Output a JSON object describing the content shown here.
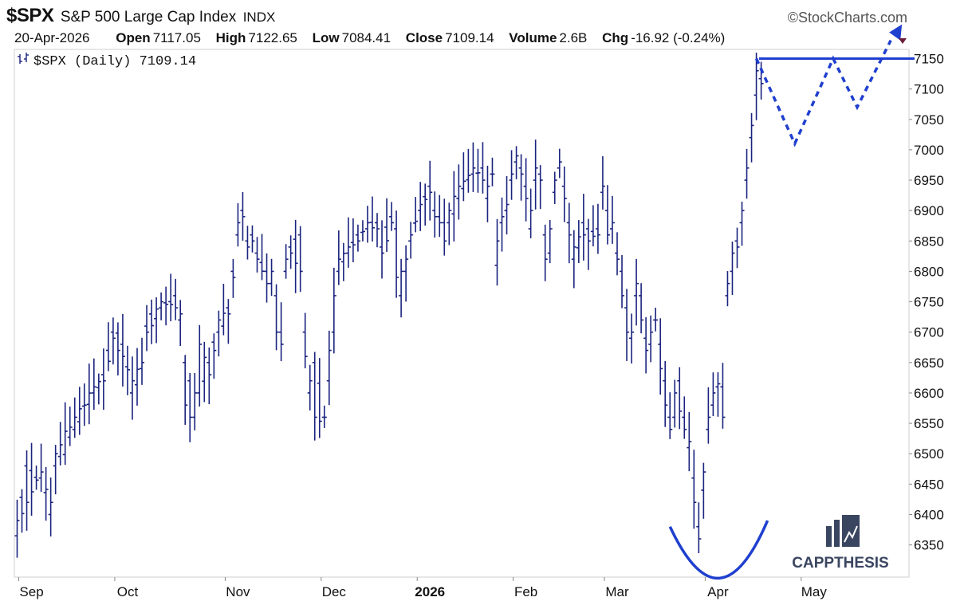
{
  "header": {
    "ticker": "$SPX",
    "name": "S&P 500 Large Cap Index",
    "exchange": "INDX",
    "brand": "©StockCharts.com",
    "date": "20-Apr-2026",
    "open_label": "Open",
    "open": "7117.05",
    "high_label": "High",
    "high": "7122.65",
    "low_label": "Low",
    "low": "7084.41",
    "close_label": "Close",
    "close": "7109.14",
    "volume_label": "Volume",
    "volume": "2.6B",
    "chg_label": "Chg",
    "chg": "-16.92 (-0.24%)"
  },
  "legend": {
    "label": "$SPX (Daily) 7109.14"
  },
  "logo": {
    "text": "CAPPTHESIS"
  },
  "colors": {
    "bars": "#1a237e",
    "annotation": "#1f3fcf",
    "chg_marker": "#6d1b3b",
    "logo": "#3a4560"
  },
  "chart_data": {
    "type": "ohlc",
    "ylim": [
      6290,
      7180
    ],
    "y_ticks": [
      6350,
      6400,
      6450,
      6500,
      6550,
      6600,
      6650,
      6700,
      6750,
      6800,
      6850,
      6900,
      6950,
      7000,
      7050,
      7100,
      7150
    ],
    "x_tick_labels": [
      {
        "label": "Sep",
        "index": 3,
        "bold": false
      },
      {
        "label": "Oct",
        "index": 23,
        "bold": false
      },
      {
        "label": "Nov",
        "index": 46,
        "bold": false
      },
      {
        "label": "Dec",
        "index": 66,
        "bold": false
      },
      {
        "label": "2026",
        "index": 86,
        "bold": true
      },
      {
        "label": "Feb",
        "index": 106,
        "bold": false
      },
      {
        "label": "Mar",
        "index": 125,
        "bold": false
      },
      {
        "label": "Apr",
        "index": 146,
        "bold": false
      },
      {
        "label": "May",
        "index": 166,
        "bold": false
      }
    ],
    "num_slots": 188,
    "anchors": [
      [
        0,
        6365,
        6390
      ],
      [
        2,
        6480,
        6420
      ],
      [
        5,
        6460,
        6470
      ],
      [
        7,
        6400,
        6420
      ],
      [
        8,
        6480,
        6500
      ],
      [
        12,
        6540,
        6560
      ],
      [
        16,
        6600,
        6610
      ],
      [
        18,
        6630,
        6620
      ],
      [
        20,
        6700,
        6690
      ],
      [
        22,
        6680,
        6660
      ],
      [
        24,
        6600,
        6620
      ],
      [
        26,
        6640,
        6650
      ],
      [
        27,
        6710,
        6700
      ],
      [
        30,
        6740,
        6750
      ],
      [
        33,
        6760,
        6740
      ],
      [
        34,
        6720,
        6730
      ],
      [
        35,
        6650,
        6580
      ],
      [
        36,
        6620,
        6560
      ],
      [
        37,
        6560,
        6600
      ],
      [
        38,
        6600,
        6680
      ],
      [
        40,
        6650,
        6630
      ],
      [
        42,
        6700,
        6720
      ],
      [
        44,
        6740,
        6730
      ],
      [
        45,
        6800,
        6790
      ],
      [
        46,
        6860,
        6880
      ],
      [
        47,
        6900,
        6890
      ],
      [
        48,
        6850,
        6840
      ],
      [
        49,
        6860,
        6850
      ],
      [
        50,
        6830,
        6820
      ],
      [
        52,
        6800,
        6780
      ],
      [
        53,
        6780,
        6800
      ],
      [
        54,
        6760,
        6700
      ],
      [
        55,
        6700,
        6680
      ],
      [
        56,
        6800,
        6820
      ],
      [
        57,
        6840,
        6830
      ],
      [
        59,
        6860,
        6800
      ],
      [
        60,
        6700,
        6660
      ],
      [
        61,
        6600,
        6620
      ],
      [
        62,
        6650,
        6560
      ],
      [
        64,
        6560,
        6560
      ],
      [
        65,
        6620,
        6670
      ],
      [
        66,
        6700,
        6760
      ],
      [
        67,
        6800,
        6820
      ],
      [
        69,
        6830,
        6840
      ],
      [
        71,
        6860,
        6850
      ],
      [
        73,
        6870,
        6880
      ],
      [
        75,
        6880,
        6870
      ],
      [
        76,
        6840,
        6830
      ],
      [
        78,
        6890,
        6880
      ],
      [
        79,
        6870,
        6790
      ],
      [
        80,
        6760,
        6800
      ],
      [
        81,
        6800,
        6820
      ],
      [
        82,
        6850,
        6860
      ],
      [
        84,
        6900,
        6910
      ],
      [
        86,
        6940,
        6930
      ],
      [
        87,
        6900,
        6890
      ],
      [
        88,
        6890,
        6880
      ],
      [
        89,
        6880,
        6850
      ],
      [
        90,
        6880,
        6900
      ],
      [
        92,
        6920,
        6940
      ],
      [
        95,
        6960,
        6970
      ],
      [
        97,
        6970,
        6950
      ],
      [
        98,
        6920,
        6940
      ],
      [
        99,
        6960,
        6960
      ],
      [
        100,
        6810,
        6850
      ],
      [
        101,
        6880,
        6890
      ],
      [
        102,
        6900,
        6910
      ],
      [
        103,
        6950,
        6960
      ],
      [
        104,
        6980,
        6990
      ],
      [
        105,
        6970,
        6960
      ],
      [
        106,
        6940,
        6920
      ],
      [
        107,
        6870,
        6900
      ],
      [
        108,
        6950,
        6970
      ],
      [
        109,
        6960,
        6950
      ],
      [
        110,
        6860,
        6820
      ],
      [
        111,
        6830,
        6870
      ],
      [
        112,
        6930,
        6950
      ],
      [
        113,
        6970,
        6980
      ],
      [
        114,
        6940,
        6920
      ],
      [
        115,
        6880,
        6860
      ],
      [
        116,
        6820,
        6840
      ],
      [
        118,
        6880,
        6860
      ],
      [
        119,
        6870,
        6850
      ],
      [
        121,
        6870,
        6860
      ],
      [
        122,
        6930,
        6940
      ],
      [
        123,
        6900,
        6860
      ],
      [
        124,
        6870,
        6880
      ],
      [
        125,
        6830,
        6820
      ],
      [
        126,
        6800,
        6760
      ],
      [
        127,
        6740,
        6700
      ],
      [
        128,
        6690,
        6700
      ],
      [
        129,
        6760,
        6780
      ],
      [
        130,
        6760,
        6720
      ],
      [
        131,
        6690,
        6670
      ],
      [
        132,
        6680,
        6700
      ],
      [
        133,
        6720,
        6720
      ],
      [
        134,
        6680,
        6640
      ],
      [
        135,
        6620,
        6580
      ],
      [
        136,
        6560,
        6540
      ],
      [
        137,
        6560,
        6600
      ],
      [
        138,
        6620,
        6570
      ],
      [
        139,
        6560,
        6540
      ],
      [
        140,
        6510,
        6520
      ],
      [
        141,
        6460,
        6420
      ],
      [
        142,
        6380,
        6360
      ],
      [
        143,
        6440,
        6470
      ],
      [
        144,
        6540,
        6560
      ],
      [
        145,
        6580,
        6600
      ],
      [
        146,
        6610,
        6615
      ],
      [
        147,
        6610,
        6560
      ],
      [
        148,
        6760,
        6780
      ],
      [
        149,
        6800,
        6830
      ],
      [
        150,
        6850,
        6840
      ],
      [
        151,
        6880,
        6900
      ],
      [
        152,
        6950,
        6970
      ],
      [
        153,
        7020,
        7040
      ],
      [
        154,
        7090,
        7130
      ],
      [
        155,
        7117,
        7109
      ]
    ],
    "annotations": {
      "resistance_level": 7150,
      "projection_path": [
        [
          154,
          7150
        ],
        [
          162,
          7010
        ],
        [
          170,
          7150
        ],
        [
          175,
          7070
        ],
        [
          182,
          7180
        ]
      ],
      "bowl": {
        "from": [
          140,
          6380
        ],
        "bottom": [
          147,
          6300
        ],
        "to": [
          154,
          6390
        ]
      }
    }
  }
}
